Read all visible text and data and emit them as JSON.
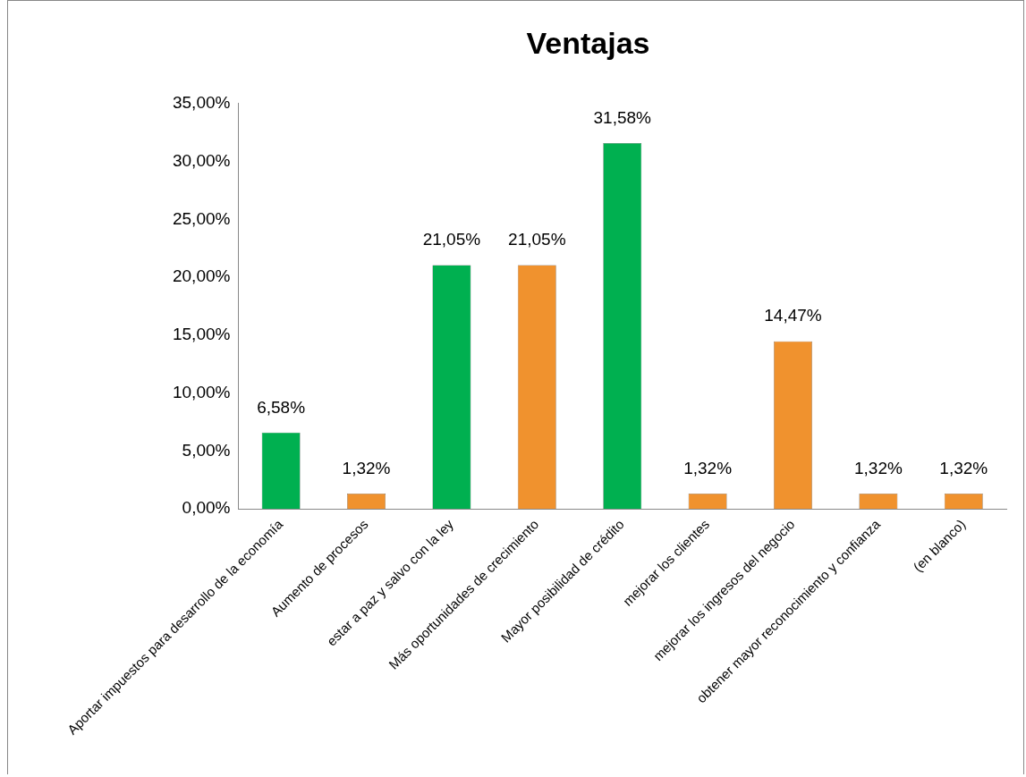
{
  "chart_data": {
    "type": "bar",
    "title": "Ventajas",
    "categories": [
      "Aportar impuestos para desarrollo de la economía",
      "Aumento de procesos",
      "estar a paz y salvo con la ley",
      "Más oportunidades de crecimiento",
      "Mayor posibilidad de crédito",
      "mejorar los clientes",
      "mejorar los ingresos del negocio",
      "obtener mayor reconocimiento y confianza",
      "(en blanco)"
    ],
    "values": [
      6.58,
      1.32,
      21.05,
      21.05,
      31.58,
      1.32,
      14.47,
      1.32,
      1.32
    ],
    "value_labels": [
      "6,58%",
      "1,32%",
      "21,05%",
      "21,05%",
      "31,58%",
      "1,32%",
      "14,47%",
      "1,32%",
      "1,32%"
    ],
    "colors": [
      "#00b050",
      "#f0922e",
      "#00b050",
      "#f0922e",
      "#00b050",
      "#f0922e",
      "#f0922e",
      "#f0922e",
      "#f0922e"
    ],
    "ylim": [
      0,
      35
    ],
    "yticks": [
      {
        "value": 0,
        "label": "0,00%"
      },
      {
        "value": 5,
        "label": "5,00%"
      },
      {
        "value": 10,
        "label": "10,00%"
      },
      {
        "value": 15,
        "label": "15,00%"
      },
      {
        "value": 20,
        "label": "20,00%"
      },
      {
        "value": 25,
        "label": "25,00%"
      },
      {
        "value": 30,
        "label": "30,00%"
      },
      {
        "value": 35,
        "label": "35,00%"
      }
    ],
    "grid": false,
    "legend": false
  }
}
